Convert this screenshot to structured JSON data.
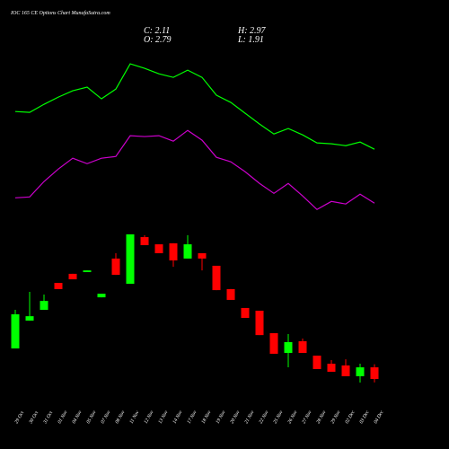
{
  "chart_data": {
    "type": "candlestick",
    "title": "IOC 165 CE Options Chart MunafaSutra.com",
    "ohlc_header": [
      "C: 2.11",
      "H: 2.97",
      "O: 2.79",
      "L: 1.91"
    ],
    "categories": [
      "29 Oct",
      "30 Oct",
      "31 Oct",
      "01 Nov",
      "04 Nov",
      "05 Nov",
      "07 Nov",
      "08 Nov",
      "11 Nov",
      "12 Nov",
      "13 Nov",
      "14 Nov",
      "17 Nov",
      "18 Nov",
      "19 Nov",
      "20 Nov",
      "21 Nov",
      "22 Nov",
      "25 Nov",
      "26 Nov",
      "27 Nov",
      "28 Nov",
      "29 Nov",
      "02 Dec",
      "03 Dec",
      "04 Dec"
    ],
    "open": [
      3.89,
      5.51,
      6.14,
      7.71,
      8.24,
      8.34,
      6.87,
      9.13,
      7.66,
      10.38,
      9.96,
      10.02,
      9.13,
      9.44,
      8.71,
      7.35,
      6.25,
      6.09,
      4.78,
      3.63,
      4.31,
      3.47,
      3.0,
      2.9,
      2.27,
      2.79
    ],
    "high": [
      6.14,
      7.19,
      7.03,
      7.71,
      8.24,
      8.44,
      7.08,
      9.44,
      10.54,
      10.49,
      9.96,
      10.02,
      10.49,
      9.44,
      8.71,
      7.35,
      6.25,
      6.09,
      4.78,
      4.73,
      4.47,
      3.47,
      3.21,
      3.26,
      3.0,
      2.97
    ],
    "low": [
      3.89,
      5.51,
      6.14,
      7.35,
      7.92,
      8.34,
      6.87,
      8.18,
      7.66,
      9.91,
      9.44,
      8.65,
      9.13,
      8.44,
      7.29,
      6.72,
      5.67,
      4.67,
      3.58,
      2.79,
      3.63,
      2.69,
      2.53,
      2.27,
      1.9,
      1.91
    ],
    "close": [
      5.88,
      5.77,
      6.66,
      7.35,
      7.92,
      8.44,
      7.08,
      8.18,
      10.54,
      9.91,
      9.44,
      9.02,
      9.96,
      9.13,
      7.29,
      6.72,
      5.67,
      4.67,
      3.58,
      4.26,
      3.63,
      2.69,
      2.53,
      2.27,
      2.79,
      2.11
    ],
    "up_color": "#00ff00",
    "down_color": "#ff0000",
    "lines": [
      {
        "color": "#00ff00",
        "values": [
          17.7,
          17.65,
          18.12,
          18.54,
          18.91,
          19.12,
          18.44,
          19.01,
          20.48,
          20.22,
          19.9,
          19.69,
          20.11,
          19.69,
          18.65,
          18.23,
          17.6,
          16.97,
          16.39,
          16.71,
          16.34,
          15.87,
          15.82,
          15.71,
          15.92,
          15.5
        ]
      },
      {
        "color": "#cc00cc",
        "values": [
          12.67,
          12.72,
          13.62,
          14.35,
          14.98,
          14.66,
          14.98,
          15.08,
          16.29,
          16.24,
          16.29,
          15.97,
          16.6,
          16.03,
          15.03,
          14.77,
          14.19,
          13.51,
          12.93,
          13.51,
          12.78,
          11.99,
          12.46,
          12.31,
          12.88,
          12.36
        ]
      }
    ],
    "ylim": [
      1.17,
      24.2
    ]
  }
}
